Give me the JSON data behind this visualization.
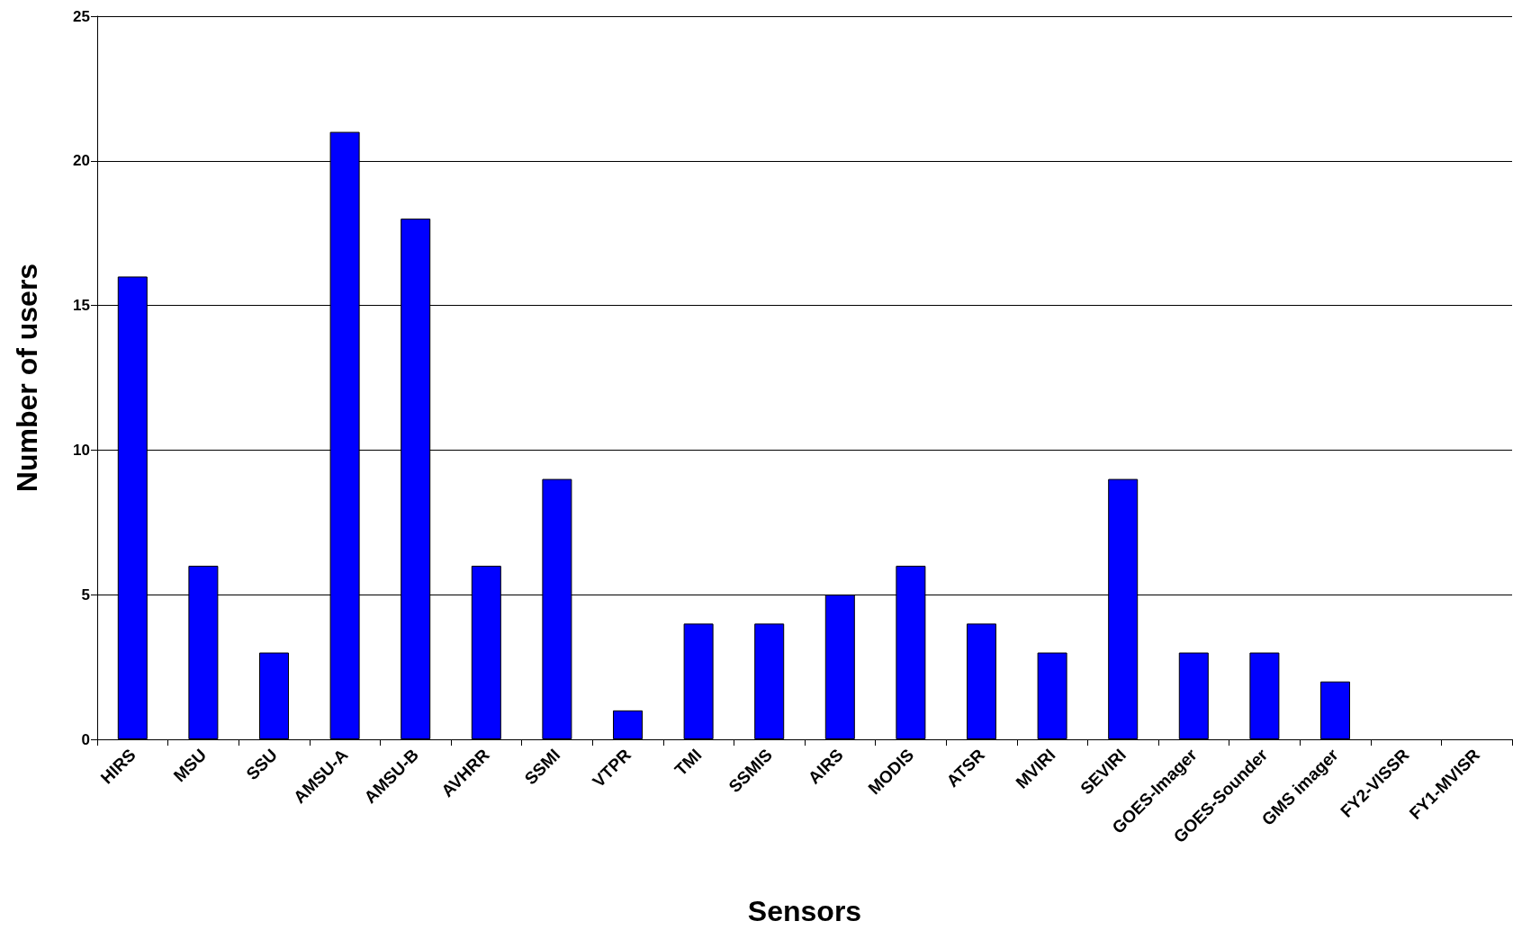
{
  "chart_data": {
    "type": "bar",
    "xlabel": "Sensors",
    "ylabel": "Number of users",
    "categories": [
      "HIRS",
      "MSU",
      "SSU",
      "AMSU-A",
      "AMSU-B",
      "AVHRR",
      "SSMI",
      "VTPR",
      "TMI",
      "SSMIS",
      "AIRS",
      "MODIS",
      "ATSR",
      "MVIRI",
      "SEVIRI",
      "GOES-Imager",
      "GOES-Sounder",
      "GMS imager",
      "FY2-VISSR",
      "FY1-MVISR"
    ],
    "values": [
      16,
      6,
      3,
      21,
      18,
      6,
      9,
      1,
      4,
      4,
      5,
      6,
      4,
      3,
      9,
      3,
      3,
      2,
      0,
      0
    ],
    "color": "#0000ff",
    "ylim": [
      0,
      25
    ],
    "yticks": [
      0,
      5,
      10,
      15,
      20,
      25
    ],
    "grid": "y"
  }
}
